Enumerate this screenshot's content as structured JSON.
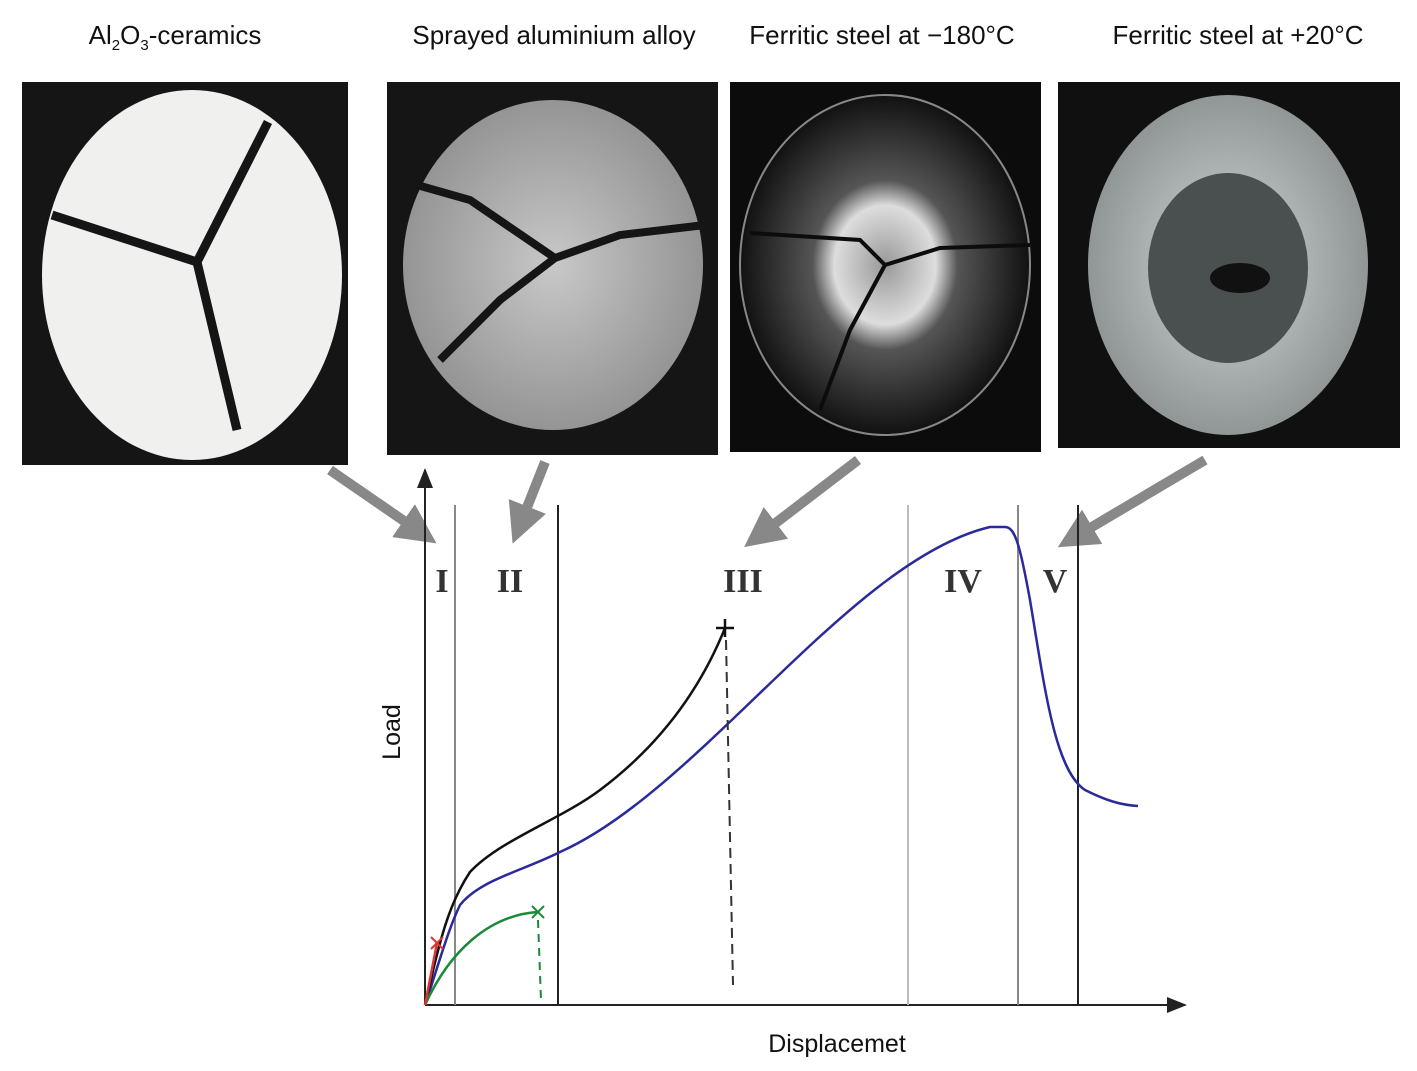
{
  "photos": [
    {
      "title_parts": [
        "Al",
        "2",
        "O",
        "3",
        "-ceramics"
      ]
    },
    {
      "title": "Sprayed aluminium alloy"
    },
    {
      "title": "Ferritic steel at −180°C"
    },
    {
      "title": "Ferritic steel at +20°C"
    }
  ],
  "regions": [
    "I",
    "II",
    "III",
    "IV",
    "V"
  ],
  "axes": {
    "y_label": "Load",
    "x_label": "Displacemet"
  }
}
